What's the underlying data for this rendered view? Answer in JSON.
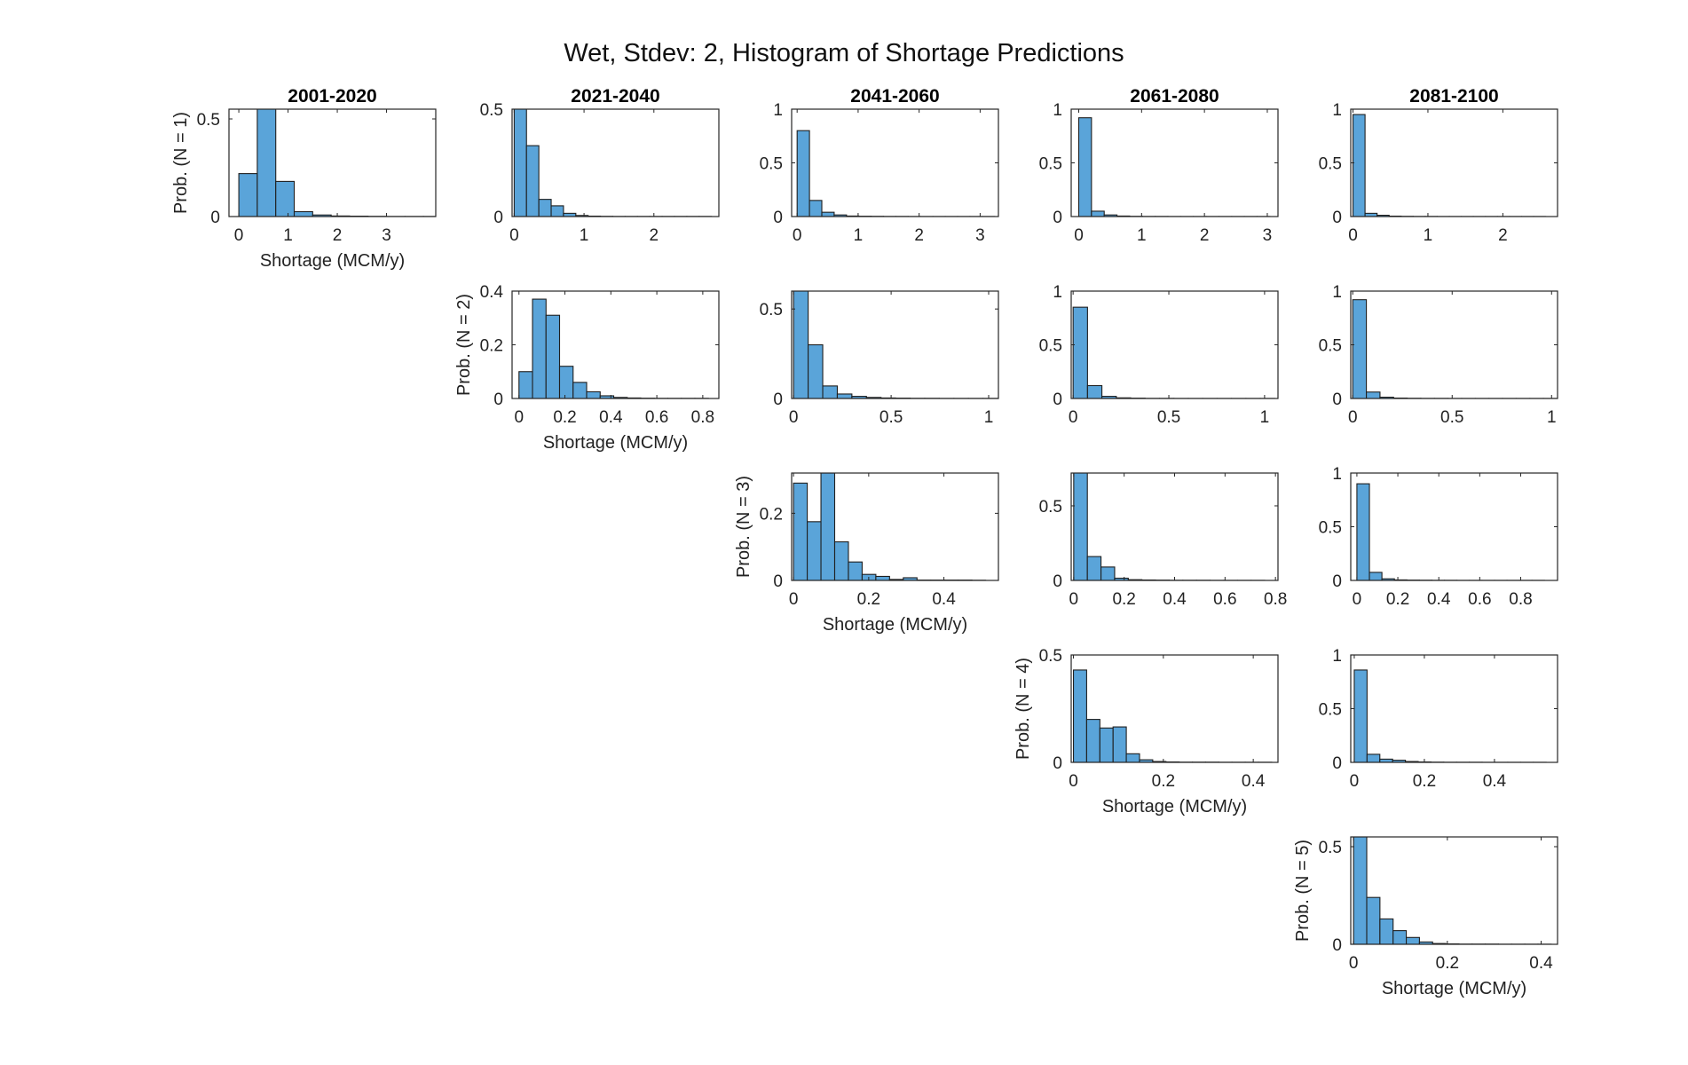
{
  "title": "Wet, Stdev: 2, Histogram of Shortage Predictions",
  "colors": {
    "bar_fill": "#5aa4d9",
    "bar_edge": "#1f1f1f",
    "axis": "#262626"
  },
  "chart_data": [
    {
      "type": "bar",
      "period": "2001-2020",
      "row": 1,
      "col": 1,
      "title": "2001-2020",
      "xlabel": "Shortage (MCM/y)",
      "ylabel": "Prob. (N = 1)",
      "xlim": [
        -0.2,
        4.0
      ],
      "ylim": [
        0,
        0.55
      ],
      "xticks": [
        0,
        1,
        2,
        3
      ],
      "xtick_labels": [
        "0",
        "1",
        "2",
        "3"
      ],
      "yticks": [
        0,
        0.5
      ],
      "ytick_labels": [
        "0",
        "0.5"
      ],
      "bin_start": 0.0,
      "bin_width": 0.3751,
      "values": [
        0.22,
        0.56,
        0.18,
        0.025,
        0.008,
        0.003,
        0.002,
        0.001,
        0.0005,
        0.0005,
        0.0005
      ]
    },
    {
      "type": "bar",
      "period": "2021-2040",
      "row": 1,
      "col": 2,
      "title": "2021-2040",
      "xlabel": "",
      "ylabel": "",
      "xlim": [
        -0.03,
        2.93
      ],
      "ylim": [
        0,
        0.5
      ],
      "xticks": [
        0,
        1,
        2
      ],
      "xtick_labels": [
        "0",
        "1",
        "2"
      ],
      "yticks": [
        0,
        0.5
      ],
      "ytick_labels": [
        "0",
        "0.5"
      ],
      "bin_start": 0.0,
      "bin_width": 0.1765,
      "values": [
        0.52,
        0.33,
        0.08,
        0.05,
        0.015,
        0.005,
        0.002,
        0.001,
        0.0005,
        0.0005,
        0.0005,
        0.0005,
        0.0005,
        0.0005,
        0.0005,
        0.0005
      ]
    },
    {
      "type": "bar",
      "period": "2041-2060",
      "row": 1,
      "col": 3,
      "title": "2041-2060",
      "xlabel": "",
      "ylabel": "",
      "xlim": [
        -0.09,
        3.3
      ],
      "ylim": [
        0,
        1
      ],
      "xticks": [
        0,
        1,
        2,
        3
      ],
      "xtick_labels": [
        "0",
        "1",
        "2",
        "3"
      ],
      "yticks": [
        0,
        0.5,
        1
      ],
      "ytick_labels": [
        "0",
        "0.5",
        "1"
      ],
      "bin_start": 0.0,
      "bin_width": 0.2024,
      "values": [
        0.8,
        0.15,
        0.04,
        0.015,
        0.005,
        0.003,
        0.002,
        0.001,
        0.001,
        0.0005,
        0.0005,
        0.0005,
        0.0005,
        0.0005,
        0.0005,
        0.0005
      ]
    },
    {
      "type": "bar",
      "period": "2061-2080",
      "row": 1,
      "col": 4,
      "title": "2061-2080",
      "xlabel": "",
      "ylabel": "",
      "xlim": [
        -0.12,
        3.17
      ],
      "ylim": [
        0,
        1
      ],
      "xticks": [
        0,
        1,
        2,
        3
      ],
      "xtick_labels": [
        "0",
        "1",
        "2",
        "3"
      ],
      "yticks": [
        0,
        0.5,
        1
      ],
      "ytick_labels": [
        "0",
        "0.5",
        "1"
      ],
      "bin_start": 0.0,
      "bin_width": 0.2027,
      "values": [
        0.92,
        0.05,
        0.015,
        0.005,
        0.002,
        0.001,
        0.001,
        0.0005,
        0.0005,
        0.0005,
        0.0005,
        0.0005,
        0.0005,
        0.0005,
        0.0005
      ]
    },
    {
      "type": "bar",
      "period": "2081-2100",
      "row": 1,
      "col": 5,
      "title": "2081-2100",
      "xlabel": "",
      "ylabel": "",
      "xlim": [
        -0.03,
        2.73
      ],
      "ylim": [
        0,
        1
      ],
      "xticks": [
        0,
        1,
        2
      ],
      "xtick_labels": [
        "0",
        "1",
        "2"
      ],
      "yticks": [
        0,
        0.5,
        1
      ],
      "ytick_labels": [
        "0",
        "0.5",
        "1"
      ],
      "bin_start": 0.0,
      "bin_width": 0.1607,
      "values": [
        0.95,
        0.03,
        0.012,
        0.004,
        0.002,
        0.001,
        0.001,
        0.0005,
        0.0005,
        0.0005,
        0.0005,
        0.0005,
        0.0005,
        0.0005,
        0.0005,
        0.0005
      ]
    },
    {
      "type": "bar",
      "period": "2021-2040",
      "row": 2,
      "col": 2,
      "xlabel": "Shortage (MCM/y)",
      "ylabel": "Prob. (N = 2)",
      "xlim": [
        -0.03,
        0.87
      ],
      "ylim": [
        0,
        0.4
      ],
      "xticks": [
        0,
        0.2,
        0.4,
        0.6,
        0.8
      ],
      "xtick_labels": [
        "0",
        "0.2",
        "0.4",
        "0.6",
        "0.8"
      ],
      "yticks": [
        0,
        0.2,
        0.4
      ],
      "ytick_labels": [
        "0",
        "0.2",
        "0.4"
      ],
      "bin_start": 0.0,
      "bin_width": 0.0589,
      "values": [
        0.1,
        0.37,
        0.31,
        0.12,
        0.06,
        0.025,
        0.01,
        0.004,
        0.002,
        0.001,
        0.0005,
        0.0005,
        0.0005,
        0.0005
      ]
    },
    {
      "type": "bar",
      "period": "2041-2060",
      "row": 2,
      "col": 3,
      "xlabel": "",
      "ylabel": "",
      "xlim": [
        -0.01,
        1.05
      ],
      "ylim": [
        0,
        0.6
      ],
      "xticks": [
        0,
        0.5,
        1
      ],
      "xtick_labels": [
        "0",
        "0.5",
        "1"
      ],
      "yticks": [
        0,
        0.5
      ],
      "ytick_labels": [
        "0",
        "0.5"
      ],
      "bin_start": 0.0,
      "bin_width": 0.0747,
      "values": [
        0.61,
        0.3,
        0.07,
        0.025,
        0.012,
        0.006,
        0.003,
        0.002,
        0.001,
        0.001,
        0.0005,
        0.0005,
        0.0005,
        0.0005
      ]
    },
    {
      "type": "bar",
      "period": "2061-2080",
      "row": 2,
      "col": 4,
      "xlabel": "",
      "ylabel": "",
      "xlim": [
        -0.01,
        1.07
      ],
      "ylim": [
        0,
        1
      ],
      "xticks": [
        0,
        0.5,
        1
      ],
      "xtick_labels": [
        "0",
        "0.5",
        "1"
      ],
      "yticks": [
        0,
        0.5,
        1
      ],
      "ytick_labels": [
        "0",
        "0.5",
        "1"
      ],
      "bin_start": 0.0,
      "bin_width": 0.0752,
      "values": [
        0.85,
        0.12,
        0.02,
        0.006,
        0.003,
        0.001,
        0.001,
        0.0005,
        0.0005,
        0.0005,
        0.0005,
        0.0005,
        0.0005,
        0.0005
      ]
    },
    {
      "type": "bar",
      "period": "2081-2100",
      "row": 2,
      "col": 5,
      "xlabel": "",
      "ylabel": "",
      "xlim": [
        -0.01,
        1.03
      ],
      "ylim": [
        0,
        1
      ],
      "xticks": [
        0,
        0.5,
        1
      ],
      "xtick_labels": [
        "0",
        "0.5",
        "1"
      ],
      "yticks": [
        0,
        0.5,
        1
      ],
      "ytick_labels": [
        "0",
        "0.5",
        "1"
      ],
      "bin_start": 0.0,
      "bin_width": 0.0685,
      "values": [
        0.92,
        0.06,
        0.012,
        0.004,
        0.002,
        0.001,
        0.001,
        0.0005,
        0.0005,
        0.0005,
        0.0005,
        0.0005,
        0.0005,
        0.0005,
        0.0005
      ]
    },
    {
      "type": "bar",
      "period": "2041-2060",
      "row": 3,
      "col": 3,
      "xlabel": "Shortage (MCM/y)",
      "ylabel": "Prob. (N = 3)",
      "xlim": [
        -0.005,
        0.545
      ],
      "ylim": [
        0,
        0.32
      ],
      "xticks": [
        0,
        0.2,
        0.4
      ],
      "xtick_labels": [
        "0",
        "0.2",
        "0.4"
      ],
      "yticks": [
        0,
        0.2
      ],
      "ytick_labels": [
        "0",
        "0.2"
      ],
      "bin_start": 0.0,
      "bin_width": 0.0365,
      "values": [
        0.29,
        0.175,
        0.32,
        0.115,
        0.055,
        0.018,
        0.012,
        0.003,
        0.008,
        0.001,
        0.001,
        0.001,
        0.001,
        0.0005
      ]
    },
    {
      "type": "bar",
      "period": "2061-2080",
      "row": 3,
      "col": 4,
      "xlabel": "",
      "ylabel": "",
      "xlim": [
        -0.01,
        0.81
      ],
      "ylim": [
        0,
        0.72
      ],
      "xticks": [
        0,
        0.2,
        0.4,
        0.6,
        0.8
      ],
      "xtick_labels": [
        "0",
        "0.2",
        "0.4",
        "0.6",
        "0.8"
      ],
      "yticks": [
        0,
        0.5
      ],
      "ytick_labels": [
        "0",
        "0.5"
      ],
      "bin_start": 0.0,
      "bin_width": 0.0541,
      "values": [
        0.74,
        0.16,
        0.09,
        0.015,
        0.005,
        0.003,
        0.002,
        0.001,
        0.001,
        0.001,
        0.0005,
        0.0005,
        0.0005,
        0.0005
      ]
    },
    {
      "type": "bar",
      "period": "2081-2100",
      "row": 3,
      "col": 5,
      "xlabel": "",
      "ylabel": "",
      "xlim": [
        -0.03,
        0.98
      ],
      "ylim": [
        0,
        1
      ],
      "xticks": [
        0,
        0.2,
        0.4,
        0.6,
        0.8
      ],
      "xtick_labels": [
        "0",
        "0.2",
        "0.4",
        "0.6",
        "0.8"
      ],
      "yticks": [
        0,
        0.5,
        1
      ],
      "ytick_labels": [
        "0",
        "0.5",
        "1"
      ],
      "bin_start": 0.0,
      "bin_width": 0.0611,
      "values": [
        0.9,
        0.075,
        0.015,
        0.005,
        0.003,
        0.002,
        0.001,
        0.001,
        0.0005,
        0.0005,
        0.0005,
        0.0005,
        0.0005,
        0.0005,
        0.0005
      ]
    },
    {
      "type": "bar",
      "period": "2061-2080",
      "row": 4,
      "col": 4,
      "xlabel": "Shortage (MCM/y)",
      "ylabel": "Prob. (N = 4)",
      "xlim": [
        -0.005,
        0.455
      ],
      "ylim": [
        0,
        0.5
      ],
      "xticks": [
        0,
        0.2,
        0.4
      ],
      "xtick_labels": [
        "0",
        "0.2",
        "0.4"
      ],
      "yticks": [
        0,
        0.5
      ],
      "ytick_labels": [
        "0",
        "0.5"
      ],
      "bin_start": 0.0,
      "bin_width": 0.0294,
      "values": [
        0.43,
        0.2,
        0.16,
        0.165,
        0.04,
        0.012,
        0.004,
        0.002,
        0.001,
        0.001,
        0.001,
        0.0005,
        0.0005,
        0.0005,
        0.0005
      ]
    },
    {
      "type": "bar",
      "period": "2081-2100",
      "row": 4,
      "col": 5,
      "xlabel": "",
      "ylabel": "",
      "xlim": [
        -0.01,
        0.58
      ],
      "ylim": [
        0,
        1
      ],
      "xticks": [
        0,
        0.2,
        0.4
      ],
      "xtick_labels": [
        "0",
        "0.2",
        "0.4"
      ],
      "yticks": [
        0,
        0.5,
        1
      ],
      "ytick_labels": [
        "0",
        "0.5",
        "1"
      ],
      "bin_start": 0.0,
      "bin_width": 0.0365,
      "values": [
        0.86,
        0.075,
        0.03,
        0.02,
        0.008,
        0.004,
        0.002,
        0.001,
        0.001,
        0.001,
        0.0005,
        0.0005,
        0.0005,
        0.0005,
        0.0005
      ]
    },
    {
      "type": "bar",
      "period": "2081-2100",
      "row": 5,
      "col": 5,
      "xlabel": "Shortage (MCM/y)",
      "ylabel": "Prob. (N = 5)",
      "xlim": [
        -0.006,
        0.435
      ],
      "ylim": [
        0,
        0.55
      ],
      "xticks": [
        0,
        0.2,
        0.4
      ],
      "xtick_labels": [
        "0",
        "0.2",
        "0.4"
      ],
      "yticks": [
        0,
        0.5
      ],
      "ytick_labels": [
        "0",
        "0.5"
      ],
      "bin_start": 0.0,
      "bin_width": 0.0281,
      "values": [
        0.56,
        0.24,
        0.13,
        0.07,
        0.035,
        0.012,
        0.004,
        0.002,
        0.001,
        0.001,
        0.001,
        0.0005,
        0.0005,
        0.0005,
        0.0005
      ]
    }
  ]
}
